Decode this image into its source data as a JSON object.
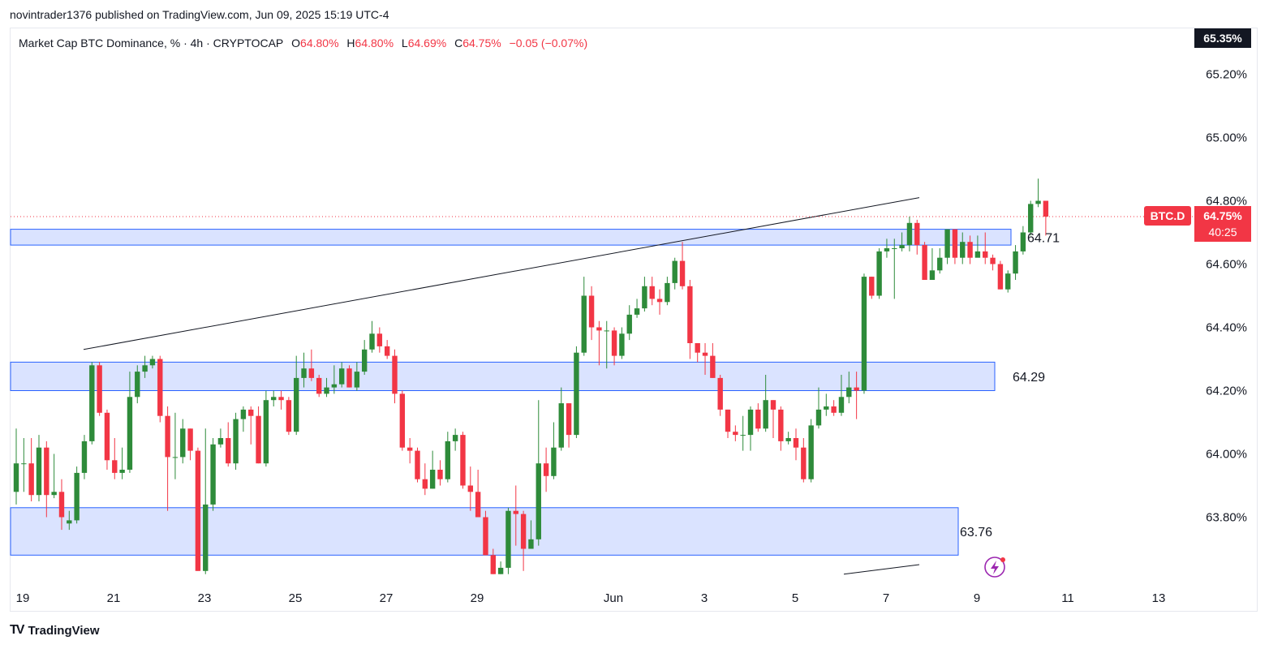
{
  "attribution": "novintrader1376 published on TradingView.com, Jun 09, 2025 15:19 UTC-4",
  "legend": {
    "symbol_text": "Market Cap BTC Dominance, % · 4h · CRYPTOCAP",
    "o_label": "O",
    "o_value": "64.80%",
    "h_label": "H",
    "h_value": "64.80%",
    "l_label": "L",
    "l_value": "64.69%",
    "c_label": "C",
    "c_value": "64.75%",
    "change": "−0.05 (−0.07%)"
  },
  "price_tags": {
    "top": "65.35%",
    "symbol": "BTC.D",
    "last": "64.75%",
    "countdown": "40:25"
  },
  "footer": {
    "logo_icon": "tradingview-logo-icon",
    "brand": "TradingView"
  },
  "colors": {
    "up": "#2e8b3a",
    "down": "#f23645",
    "zone_fill": "#d6e0ff",
    "zone_border": "#2962ff",
    "trend": "#131722",
    "tag_dark": "#131722"
  },
  "chart_data": {
    "type": "candlestick",
    "title": "Market Cap BTC Dominance, % · 4h · CRYPTOCAP",
    "y_axis": {
      "ylim": [
        63.6,
        65.4
      ],
      "ticks": [
        "65.20%",
        "65.00%",
        "64.80%",
        "64.60%",
        "64.40%",
        "64.20%",
        "64.00%",
        "63.80%"
      ],
      "tick_values": [
        65.2,
        65.0,
        64.8,
        64.6,
        64.4,
        64.2,
        64.0,
        63.8
      ]
    },
    "x_axis": {
      "tick_labels": [
        "19",
        "21",
        "23",
        "25",
        "27",
        "29",
        "Jun",
        "3",
        "5",
        "7",
        "9",
        "11",
        "13"
      ],
      "tick_dates": [
        "2025-05-19",
        "2025-05-21",
        "2025-05-23",
        "2025-05-25",
        "2025-05-27",
        "2025-05-29",
        "2025-06-01",
        "2025-06-03",
        "2025-06-05",
        "2025-06-07",
        "2025-06-09",
        "2025-06-11",
        "2025-06-13"
      ]
    },
    "grid": false,
    "last_price": 64.75,
    "zones": [
      {
        "label": "64.71",
        "from": 64.66,
        "to": 64.71,
        "start": "2025-05-19",
        "end": "2025-06-09"
      },
      {
        "label": "64.29",
        "from": 64.2,
        "to": 64.29,
        "start": "2025-05-19",
        "end": "2025-06-09"
      },
      {
        "label": "63.76",
        "from": 63.68,
        "to": 63.83,
        "start": "2025-05-19",
        "end": "2025-06-08"
      }
    ],
    "trendlines": [
      {
        "from": {
          "x": "2025-05-20",
          "y": 64.33
        },
        "to": {
          "x": "2025-06-08",
          "y": 64.81
        }
      },
      {
        "from": {
          "x": "2025-06-05",
          "y": 63.62
        },
        "to": {
          "x": "2025-06-08",
          "y": 63.65
        }
      }
    ],
    "candles": [
      [
        63.88,
        63.97,
        64.08,
        63.84
      ],
      [
        63.97,
        63.97,
        64.05,
        63.88
      ],
      [
        63.97,
        63.87,
        64.05,
        63.85
      ],
      [
        63.87,
        64.02,
        64.06,
        63.85
      ],
      [
        64.02,
        63.87,
        64.04,
        63.8
      ],
      [
        63.87,
        63.88,
        64.0,
        63.86
      ],
      [
        63.88,
        63.8,
        63.92,
        63.76
      ],
      [
        63.78,
        63.79,
        63.82,
        63.76
      ],
      [
        63.79,
        63.94,
        63.96,
        63.78
      ],
      [
        63.94,
        64.04,
        64.06,
        63.92
      ],
      [
        64.04,
        64.28,
        64.29,
        64.03
      ],
      [
        64.28,
        64.13,
        64.29,
        64.12
      ],
      [
        64.13,
        63.98,
        64.14,
        63.95
      ],
      [
        63.98,
        63.94,
        64.05,
        63.92
      ],
      [
        63.94,
        63.95,
        64.02,
        63.92
      ],
      [
        63.95,
        64.18,
        64.26,
        63.94
      ],
      [
        64.18,
        64.26,
        64.28,
        64.16
      ],
      [
        64.26,
        64.28,
        64.31,
        64.24
      ],
      [
        64.28,
        64.3,
        64.31,
        64.27
      ],
      [
        64.3,
        64.12,
        64.31,
        64.1
      ],
      [
        64.12,
        63.99,
        64.15,
        63.82
      ],
      [
        63.99,
        63.99,
        64.13,
        63.92
      ],
      [
        63.99,
        64.08,
        64.11,
        63.97
      ],
      [
        64.08,
        64.01,
        64.08,
        63.98
      ],
      [
        64.01,
        63.63,
        64.02,
        63.63
      ],
      [
        63.63,
        63.84,
        64.08,
        63.62
      ],
      [
        63.84,
        64.03,
        64.05,
        63.82
      ],
      [
        64.03,
        64.05,
        64.08,
        64.02
      ],
      [
        64.05,
        63.97,
        64.1,
        63.96
      ],
      [
        63.97,
        64.11,
        64.13,
        63.95
      ],
      [
        64.11,
        64.14,
        64.15,
        64.07
      ],
      [
        64.14,
        64.12,
        64.15,
        64.03
      ],
      [
        64.12,
        63.97,
        64.15,
        63.97
      ],
      [
        63.97,
        64.17,
        64.2,
        63.96
      ],
      [
        64.17,
        64.18,
        64.2,
        64.15
      ],
      [
        64.18,
        64.17,
        64.2,
        64.14
      ],
      [
        64.17,
        64.07,
        64.18,
        64.06
      ],
      [
        64.07,
        64.24,
        64.31,
        64.06
      ],
      [
        64.24,
        64.27,
        64.32,
        64.21
      ],
      [
        64.27,
        64.24,
        64.33,
        64.23
      ],
      [
        64.24,
        64.19,
        64.25,
        64.18
      ],
      [
        64.19,
        64.21,
        64.24,
        64.18
      ],
      [
        64.21,
        64.22,
        64.28,
        64.19
      ],
      [
        64.22,
        64.27,
        64.29,
        64.21
      ],
      [
        64.27,
        64.21,
        64.28,
        64.21
      ],
      [
        64.21,
        64.26,
        64.29,
        64.2
      ],
      [
        64.26,
        64.33,
        64.36,
        64.25
      ],
      [
        64.33,
        64.38,
        64.42,
        64.32
      ],
      [
        64.38,
        64.34,
        64.4,
        64.32
      ],
      [
        64.34,
        64.31,
        64.36,
        64.3
      ],
      [
        64.31,
        64.19,
        64.33,
        64.16
      ],
      [
        64.19,
        64.02,
        64.2,
        64.01
      ],
      [
        64.02,
        64.01,
        64.05,
        63.97
      ],
      [
        64.01,
        63.92,
        64.02,
        63.91
      ],
      [
        63.92,
        63.89,
        63.97,
        63.87
      ],
      [
        63.89,
        63.95,
        64.01,
        63.89
      ],
      [
        63.95,
        63.92,
        63.98,
        63.9
      ],
      [
        63.92,
        64.04,
        64.07,
        63.91
      ],
      [
        64.04,
        64.06,
        64.08,
        64.01
      ],
      [
        64.06,
        63.9,
        64.07,
        63.89
      ],
      [
        63.9,
        63.88,
        63.96,
        63.82
      ],
      [
        63.88,
        63.8,
        63.95,
        63.82
      ],
      [
        63.8,
        63.68,
        63.82,
        63.68
      ],
      [
        63.68,
        63.62,
        63.7,
        63.62
      ],
      [
        63.62,
        63.64,
        63.66,
        63.62
      ],
      [
        63.64,
        63.82,
        63.83,
        63.62
      ],
      [
        63.82,
        63.81,
        63.9,
        63.71
      ],
      [
        63.81,
        63.7,
        63.82,
        63.63
      ],
      [
        63.7,
        63.73,
        63.79,
        63.7
      ],
      [
        63.73,
        63.97,
        64.17,
        63.71
      ],
      [
        63.97,
        63.93,
        64.02,
        63.88
      ],
      [
        63.93,
        64.02,
        64.1,
        63.92
      ],
      [
        64.02,
        64.16,
        64.21,
        64.01
      ],
      [
        64.16,
        64.06,
        64.16,
        64.02
      ],
      [
        64.06,
        64.32,
        64.34,
        64.05
      ],
      [
        64.32,
        64.5,
        64.56,
        64.31
      ],
      [
        64.5,
        64.4,
        64.53,
        64.36
      ],
      [
        64.4,
        64.39,
        64.42,
        64.28
      ],
      [
        64.39,
        64.39,
        64.42,
        64.27
      ],
      [
        64.39,
        64.31,
        64.4,
        64.28
      ],
      [
        64.31,
        64.38,
        64.4,
        64.3
      ],
      [
        64.38,
        64.44,
        64.47,
        64.36
      ],
      [
        64.44,
        64.46,
        64.49,
        64.43
      ],
      [
        64.46,
        64.53,
        64.56,
        64.45
      ],
      [
        64.53,
        64.49,
        64.56,
        64.47
      ],
      [
        64.49,
        64.48,
        64.52,
        64.44
      ],
      [
        64.48,
        64.54,
        64.56,
        64.47
      ],
      [
        64.54,
        64.61,
        64.62,
        64.52
      ],
      [
        64.61,
        64.53,
        64.67,
        64.52
      ],
      [
        64.53,
        64.35,
        64.55,
        64.3
      ],
      [
        64.35,
        64.32,
        64.35,
        64.29
      ],
      [
        64.32,
        64.31,
        64.35,
        64.25
      ],
      [
        64.31,
        64.24,
        64.35,
        64.24
      ],
      [
        64.24,
        64.14,
        64.25,
        64.12
      ],
      [
        64.14,
        64.07,
        64.14,
        64.05
      ],
      [
        64.07,
        64.06,
        64.09,
        64.04
      ],
      [
        64.06,
        64.06,
        64.12,
        64.01
      ],
      [
        64.06,
        64.14,
        64.15,
        64.01
      ],
      [
        64.14,
        64.08,
        64.16,
        64.07
      ],
      [
        64.08,
        64.17,
        64.25,
        64.07
      ],
      [
        64.17,
        64.14,
        64.17,
        64.05
      ],
      [
        64.14,
        64.04,
        64.15,
        64.01
      ],
      [
        64.04,
        64.05,
        64.07,
        64.03
      ],
      [
        64.05,
        64.02,
        64.08,
        63.98
      ],
      [
        64.02,
        63.92,
        64.05,
        63.91
      ],
      [
        63.92,
        64.09,
        64.11,
        63.91
      ],
      [
        64.09,
        64.14,
        64.21,
        64.08
      ],
      [
        64.14,
        64.15,
        64.19,
        64.12
      ],
      [
        64.15,
        64.13,
        64.17,
        64.12
      ],
      [
        64.13,
        64.18,
        64.25,
        64.12
      ],
      [
        64.18,
        64.21,
        64.26,
        64.16
      ],
      [
        64.21,
        64.2,
        64.26,
        64.11
      ],
      [
        64.2,
        64.56,
        64.57,
        64.19
      ],
      [
        64.56,
        64.5,
        64.56,
        64.49
      ],
      [
        64.5,
        64.64,
        64.65,
        64.49
      ],
      [
        64.64,
        64.65,
        64.68,
        64.62
      ],
      [
        64.65,
        64.65,
        64.68,
        64.49
      ],
      [
        64.65,
        64.66,
        64.7,
        64.64
      ],
      [
        64.66,
        64.73,
        64.75,
        64.64
      ],
      [
        64.73,
        64.66,
        64.74,
        64.63
      ],
      [
        64.66,
        64.55,
        64.67,
        64.55
      ],
      [
        64.55,
        64.58,
        64.65,
        64.55
      ],
      [
        64.58,
        64.62,
        64.65,
        64.57
      ],
      [
        64.62,
        64.71,
        64.71,
        64.6
      ],
      [
        64.71,
        64.62,
        64.71,
        64.6
      ],
      [
        64.62,
        64.67,
        64.7,
        64.6
      ],
      [
        64.67,
        64.62,
        64.69,
        64.6
      ],
      [
        64.62,
        64.64,
        64.69,
        64.63
      ],
      [
        64.64,
        64.62,
        64.7,
        64.6
      ],
      [
        64.62,
        64.6,
        64.63,
        64.58
      ],
      [
        64.6,
        64.52,
        64.61,
        64.52
      ],
      [
        64.52,
        64.57,
        64.58,
        64.51
      ],
      [
        64.57,
        64.64,
        64.66,
        64.55
      ],
      [
        64.64,
        64.7,
        64.72,
        64.63
      ],
      [
        64.7,
        64.79,
        64.8,
        64.69
      ],
      [
        64.79,
        64.8,
        64.87,
        64.78
      ],
      [
        64.8,
        64.75,
        64.8,
        64.69
      ]
    ]
  }
}
